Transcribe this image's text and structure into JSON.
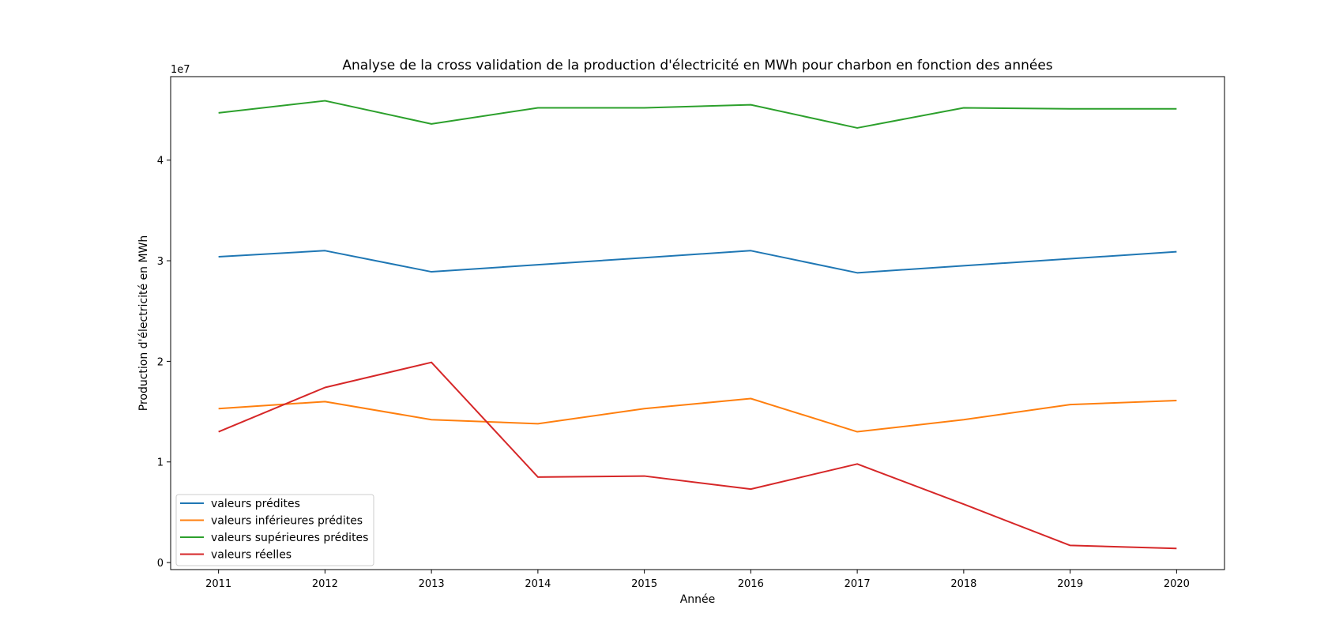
{
  "chart_data": {
    "type": "line",
    "title": "Analyse de la cross validation de la production d'électricité en MWh pour charbon en fonction des années",
    "xlabel": "Année",
    "ylabel": "Production d'électricité en MWh",
    "y_offset_label": "1e7",
    "x": [
      2011,
      2012,
      2013,
      2014,
      2015,
      2016,
      2017,
      2018,
      2019,
      2020
    ],
    "x_ticks": [
      "2011",
      "2012",
      "2013",
      "2014",
      "2015",
      "2016",
      "2017",
      "2018",
      "2019",
      "2020"
    ],
    "y_ticks": [
      0,
      10000000,
      20000000,
      30000000,
      40000000
    ],
    "y_tick_labels": [
      "0",
      "1",
      "2",
      "3",
      "4"
    ],
    "xlim": [
      2010.55,
      2020.45
    ],
    "ylim": [
      -700000,
      48300000
    ],
    "grid": false,
    "legend_position": "lower-left",
    "series": [
      {
        "name": "valeurs prédites",
        "color": "#1f77b4",
        "values": [
          30400000,
          31000000,
          28900000,
          29600000,
          30300000,
          31000000,
          28800000,
          29500000,
          30200000,
          30900000
        ]
      },
      {
        "name": "valeurs inférieures prédites",
        "color": "#ff7f0e",
        "values": [
          15300000,
          16000000,
          14200000,
          13800000,
          15300000,
          16300000,
          13000000,
          14200000,
          15700000,
          16100000
        ]
      },
      {
        "name": "valeurs supérieures prédites",
        "color": "#2ca02c",
        "values": [
          44700000,
          45900000,
          43600000,
          45200000,
          45200000,
          45500000,
          43200000,
          45200000,
          45100000,
          45100000
        ]
      },
      {
        "name": "valeurs réelles",
        "color": "#d62728",
        "values": [
          13000000,
          17400000,
          19900000,
          8500000,
          8600000,
          7300000,
          9800000,
          5800000,
          1700000,
          1400000
        ]
      }
    ]
  }
}
